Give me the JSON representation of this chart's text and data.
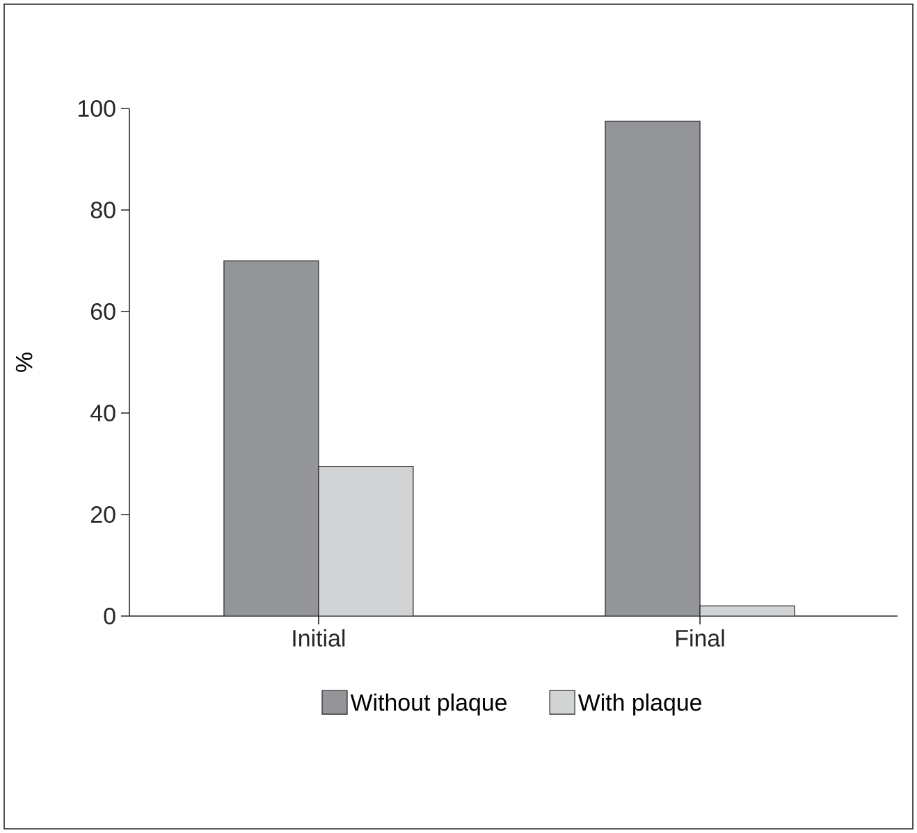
{
  "chart_data": {
    "type": "bar",
    "ylabel": "%",
    "categories": [
      "Initial",
      "Final"
    ],
    "series": [
      {
        "name": "Without plaque",
        "color": "#939598",
        "values": [
          70,
          97.5
        ]
      },
      {
        "name": "With plaque",
        "color": "#d1d3d4",
        "values": [
          29.5,
          2
        ]
      }
    ],
    "ylim": [
      0,
      100
    ],
    "yticks": [
      0,
      20,
      40,
      60,
      80,
      100
    ],
    "legend": "bottom",
    "grid": false
  }
}
